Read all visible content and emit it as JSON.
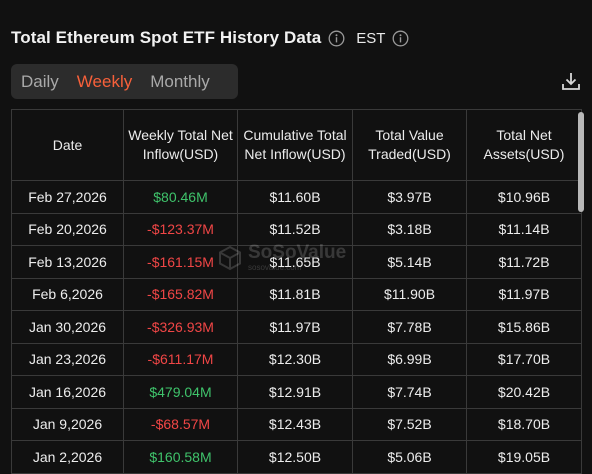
{
  "header": {
    "title": "Total Ethereum Spot ETF History Data",
    "timezone": "EST"
  },
  "tabs": [
    {
      "label": "Daily",
      "active": false
    },
    {
      "label": "Weekly",
      "active": true
    },
    {
      "label": "Monthly",
      "active": false
    }
  ],
  "colors": {
    "accent": "#f7603a",
    "positive": "#3fc36b",
    "negative": "#f04646",
    "background": "#111111"
  },
  "icons": {
    "title_info": "info-icon",
    "tz_info": "info-icon",
    "download": "download-icon"
  },
  "table": {
    "columns": [
      "Date",
      "Weekly Total Net Inflow(USD)",
      "Cumulative Total Net Inflow(USD)",
      "Total Value Traded(USD)",
      "Total Net Assets(USD)"
    ],
    "rows": [
      {
        "date": "Feb 27,2026",
        "weekly": "$80.46M",
        "cumulative": "$11.60B",
        "traded": "$3.97B",
        "assets": "$10.96B",
        "sign": "pos"
      },
      {
        "date": "Feb 20,2026",
        "weekly": "-$123.37M",
        "cumulative": "$11.52B",
        "traded": "$3.18B",
        "assets": "$11.14B",
        "sign": "neg"
      },
      {
        "date": "Feb 13,2026",
        "weekly": "-$161.15M",
        "cumulative": "$11.65B",
        "traded": "$5.14B",
        "assets": "$11.72B",
        "sign": "neg"
      },
      {
        "date": "Feb 6,2026",
        "weekly": "-$165.82M",
        "cumulative": "$11.81B",
        "traded": "$11.90B",
        "assets": "$11.97B",
        "sign": "neg"
      },
      {
        "date": "Jan 30,2026",
        "weekly": "-$326.93M",
        "cumulative": "$11.97B",
        "traded": "$7.78B",
        "assets": "$15.86B",
        "sign": "neg"
      },
      {
        "date": "Jan 23,2026",
        "weekly": "-$611.17M",
        "cumulative": "$12.30B",
        "traded": "$6.99B",
        "assets": "$17.70B",
        "sign": "neg"
      },
      {
        "date": "Jan 16,2026",
        "weekly": "$479.04M",
        "cumulative": "$12.91B",
        "traded": "$7.74B",
        "assets": "$20.42B",
        "sign": "pos"
      },
      {
        "date": "Jan 9,2026",
        "weekly": "-$68.57M",
        "cumulative": "$12.43B",
        "traded": "$7.52B",
        "assets": "$18.70B",
        "sign": "neg"
      },
      {
        "date": "Jan 2,2026",
        "weekly": "$160.58M",
        "cumulative": "$12.50B",
        "traded": "$5.06B",
        "assets": "$19.05B",
        "sign": "pos"
      }
    ]
  },
  "watermark": {
    "brand": "SoSoValue",
    "url": "sosovalue.com"
  }
}
